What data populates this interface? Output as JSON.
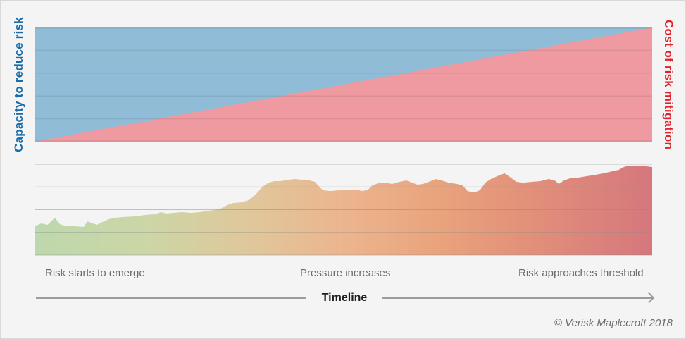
{
  "page": {
    "copyright": "© Verisk Maplecroft 2018"
  },
  "colors": {
    "background": "#f4f4f5",
    "capacity_label": "#1a6ba8",
    "cost_label": "#e2222a",
    "stage_text": "#6b6b6b",
    "timeline_text": "#1f1f1f",
    "timeline_line": "#9c9c9c",
    "copyright_text": "#6b6b6b",
    "gridline_top": "#1a1a1a",
    "gridline_bottom": "#8c8c8c"
  },
  "chart_data": [
    {
      "id": "capacity-vs-cost",
      "type": "area",
      "title": "",
      "left_axis_label": "Capacity to reduce risk",
      "right_axis_label": "Cost of risk mitigation",
      "x": [
        0,
        100
      ],
      "ylim": [
        0,
        100
      ],
      "grid": true,
      "gridline_values": [
        0,
        20,
        40,
        60,
        80,
        100
      ],
      "series": [
        {
          "name": "Capacity to reduce risk",
          "values": [
            100,
            100
          ],
          "fill": "#90bcd8",
          "note": "full-height blue band; visible blue share shrinks left to right"
        },
        {
          "name": "Cost of risk mitigation",
          "values": [
            0,
            100
          ],
          "fill": "#ef9aa0",
          "note": "pink wedge rising linearly from 0 at timeline start to 100 at timeline end"
        }
      ],
      "legend": "none"
    },
    {
      "id": "risk-over-time",
      "type": "area",
      "title": "",
      "xlabel": "Timeline",
      "ylabel": "",
      "ylim": [
        0,
        100
      ],
      "grid": true,
      "gridline_values": [
        0,
        25,
        50,
        75,
        100
      ],
      "annotations": [
        "Risk starts to emerge",
        "Pressure increases",
        "Risk approaches threshold"
      ],
      "gradient_stops": [
        [
          "0%",
          "#bcd8ac"
        ],
        [
          "18%",
          "#ccd6a6"
        ],
        [
          "35%",
          "#e0c79b"
        ],
        [
          "50%",
          "#ecb58e"
        ],
        [
          "65%",
          "#e9a47c"
        ],
        [
          "80%",
          "#e2907a"
        ],
        [
          "100%",
          "#d5777d"
        ]
      ],
      "points": [
        [
          0,
          31.8
        ],
        [
          1.1,
          34.9
        ],
        [
          2.1,
          33.3
        ],
        [
          3.3,
          41.1
        ],
        [
          4.1,
          34.1
        ],
        [
          5.1,
          31.8
        ],
        [
          6.7,
          31.8
        ],
        [
          7.9,
          31
        ],
        [
          8.6,
          37.2
        ],
        [
          9.4,
          34.9
        ],
        [
          10.1,
          33.3
        ],
        [
          10.8,
          35.7
        ],
        [
          12,
          39.5
        ],
        [
          13.1,
          41.1
        ],
        [
          14.5,
          41.9
        ],
        [
          16.2,
          42.6
        ],
        [
          17.9,
          44.2
        ],
        [
          19.6,
          45
        ],
        [
          20.5,
          47.3
        ],
        [
          21.3,
          45.7
        ],
        [
          22.5,
          46.5
        ],
        [
          23.9,
          47.3
        ],
        [
          25.3,
          46.5
        ],
        [
          26.8,
          47.3
        ],
        [
          28.2,
          48.8
        ],
        [
          29.9,
          50.4
        ],
        [
          31.2,
          55
        ],
        [
          32.2,
          57.4
        ],
        [
          33.5,
          58.1
        ],
        [
          34.7,
          60.5
        ],
        [
          35.8,
          66.7
        ],
        [
          36.9,
          75.2
        ],
        [
          37.9,
          79.8
        ],
        [
          38.8,
          81.4
        ],
        [
          39.9,
          81.4
        ],
        [
          41,
          82.9
        ],
        [
          42.2,
          83.7
        ],
        [
          43.3,
          82.9
        ],
        [
          44.5,
          82.2
        ],
        [
          45.4,
          80.6
        ],
        [
          46.1,
          75.2
        ],
        [
          46.7,
          71.3
        ],
        [
          47.9,
          70.5
        ],
        [
          49.3,
          71.3
        ],
        [
          50.6,
          72.1
        ],
        [
          52,
          72.1
        ],
        [
          53.1,
          70.5
        ],
        [
          54,
          72.1
        ],
        [
          54.7,
          76.7
        ],
        [
          55.6,
          79.1
        ],
        [
          56.8,
          79.8
        ],
        [
          57.9,
          78.3
        ],
        [
          59.1,
          80.6
        ],
        [
          60.2,
          82.2
        ],
        [
          61.1,
          79.8
        ],
        [
          62,
          77.5
        ],
        [
          62.9,
          78.3
        ],
        [
          64.1,
          81.4
        ],
        [
          65,
          83.7
        ],
        [
          65.9,
          82.2
        ],
        [
          67,
          79.8
        ],
        [
          68.4,
          78.3
        ],
        [
          69.3,
          76.7
        ],
        [
          70.1,
          70.5
        ],
        [
          71.2,
          69
        ],
        [
          72.1,
          71.3
        ],
        [
          73,
          79.8
        ],
        [
          73.9,
          83.7
        ],
        [
          74.9,
          86.8
        ],
        [
          76.1,
          89.9
        ],
        [
          77.1,
          85.3
        ],
        [
          78,
          80.6
        ],
        [
          79.1,
          79.8
        ],
        [
          80.5,
          80.6
        ],
        [
          81.9,
          81.4
        ],
        [
          83.2,
          83.7
        ],
        [
          84.2,
          82.2
        ],
        [
          84.9,
          78.3
        ],
        [
          85.7,
          82.2
        ],
        [
          86.7,
          84.5
        ],
        [
          88,
          85.3
        ],
        [
          89.4,
          86.8
        ],
        [
          90.8,
          88.4
        ],
        [
          92.1,
          89.9
        ],
        [
          93.5,
          92.2
        ],
        [
          94.6,
          93.8
        ],
        [
          95.4,
          96.9
        ],
        [
          96.2,
          98.4
        ],
        [
          97.2,
          98.4
        ],
        [
          98.1,
          97.7
        ],
        [
          99,
          97.7
        ],
        [
          100,
          96.9
        ]
      ]
    }
  ]
}
